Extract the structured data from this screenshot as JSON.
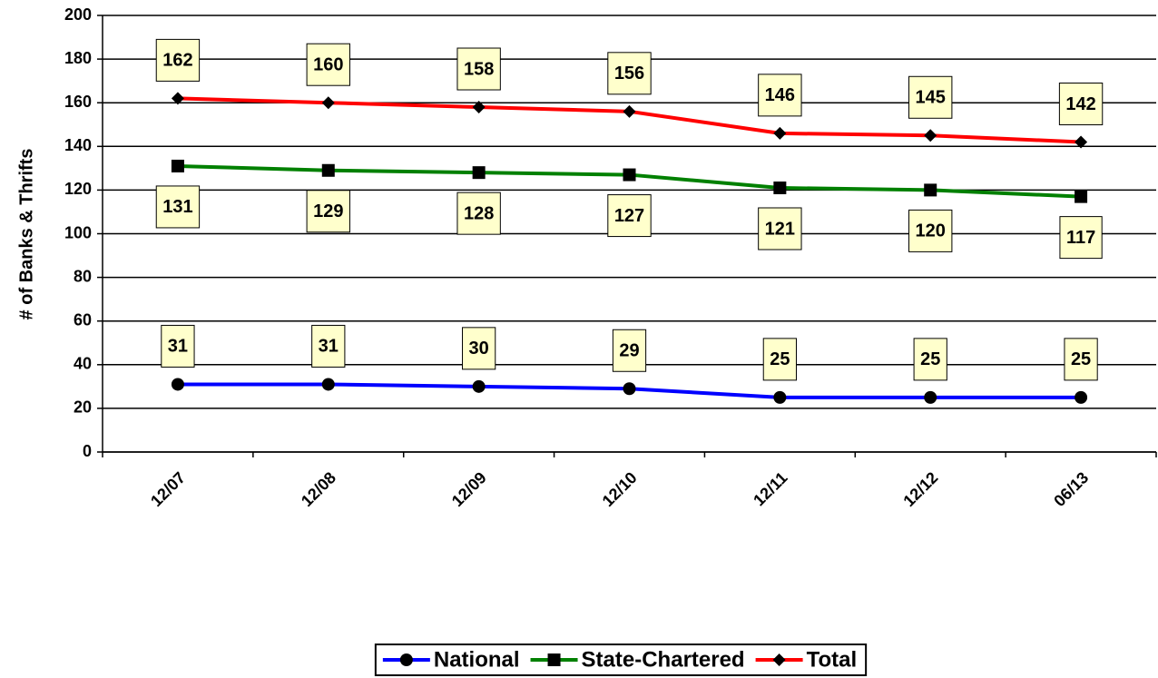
{
  "chart_data": {
    "type": "line",
    "y_label": "# of Banks & Thrifts",
    "categories": [
      "12/07",
      "12/08",
      "12/09",
      "12/10",
      "12/11",
      "12/12",
      "06/13"
    ],
    "series": [
      {
        "name": "National",
        "color": "#0000ff",
        "marker": "circle",
        "label_position": "above",
        "values": [
          31,
          31,
          30,
          29,
          25,
          25,
          25
        ]
      },
      {
        "name": "State-Chartered",
        "color": "#008000",
        "marker": "square",
        "label_position": "below",
        "values": [
          131,
          129,
          128,
          127,
          121,
          120,
          117
        ]
      },
      {
        "name": "Total",
        "color": "#ff0000",
        "marker": "diamond",
        "label_position": "above",
        "values": [
          162,
          160,
          158,
          156,
          146,
          145,
          142
        ]
      }
    ],
    "ylim": [
      0,
      200
    ],
    "yticks": [
      0,
      20,
      40,
      60,
      80,
      100,
      120,
      140,
      160,
      180,
      200
    ],
    "grid": true,
    "legend": "bottom"
  }
}
